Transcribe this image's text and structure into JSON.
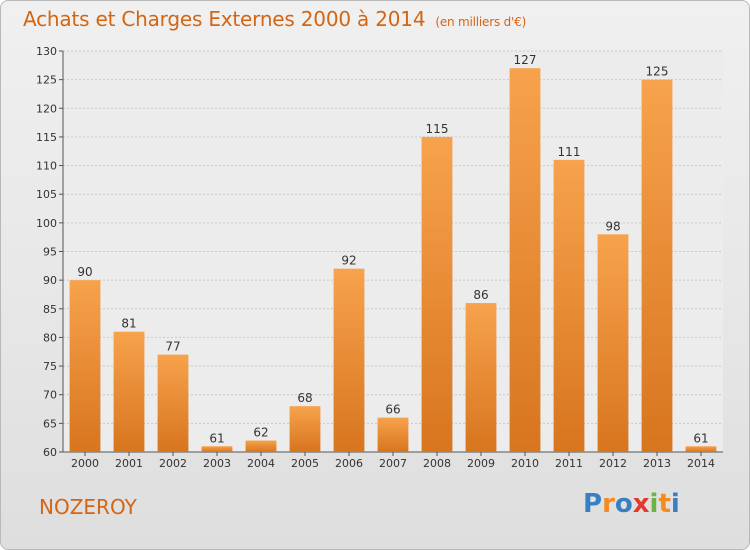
{
  "chart_data": {
    "type": "bar",
    "title": "Achats et Charges Externes 2000 à 2014",
    "subtitle": "(en milliers d'€)",
    "categories": [
      "2000",
      "2001",
      "2002",
      "2003",
      "2004",
      "2005",
      "2006",
      "2007",
      "2008",
      "2009",
      "2010",
      "2011",
      "2012",
      "2013",
      "2014"
    ],
    "values": [
      90,
      81,
      77,
      61,
      62,
      68,
      92,
      66,
      115,
      86,
      127,
      111,
      98,
      125,
      61
    ],
    "ylim": [
      60,
      130
    ],
    "yticks": [
      60,
      65,
      70,
      75,
      80,
      85,
      90,
      95,
      100,
      105,
      110,
      115,
      120,
      125,
      130
    ],
    "grid": true,
    "bar_color_light": "#f7a24c",
    "bar_color_dark": "#d8751f"
  },
  "footer": {
    "place": "NOZEROY",
    "logo_letters": [
      "P",
      "r",
      "o",
      "x",
      "i",
      "t",
      "i"
    ],
    "logo_colors": [
      "#3a7fc1",
      "#f28c1e",
      "#3a7fc1",
      "#e23b2e",
      "#6ab344",
      "#f28c1e",
      "#3a7fc1"
    ]
  }
}
